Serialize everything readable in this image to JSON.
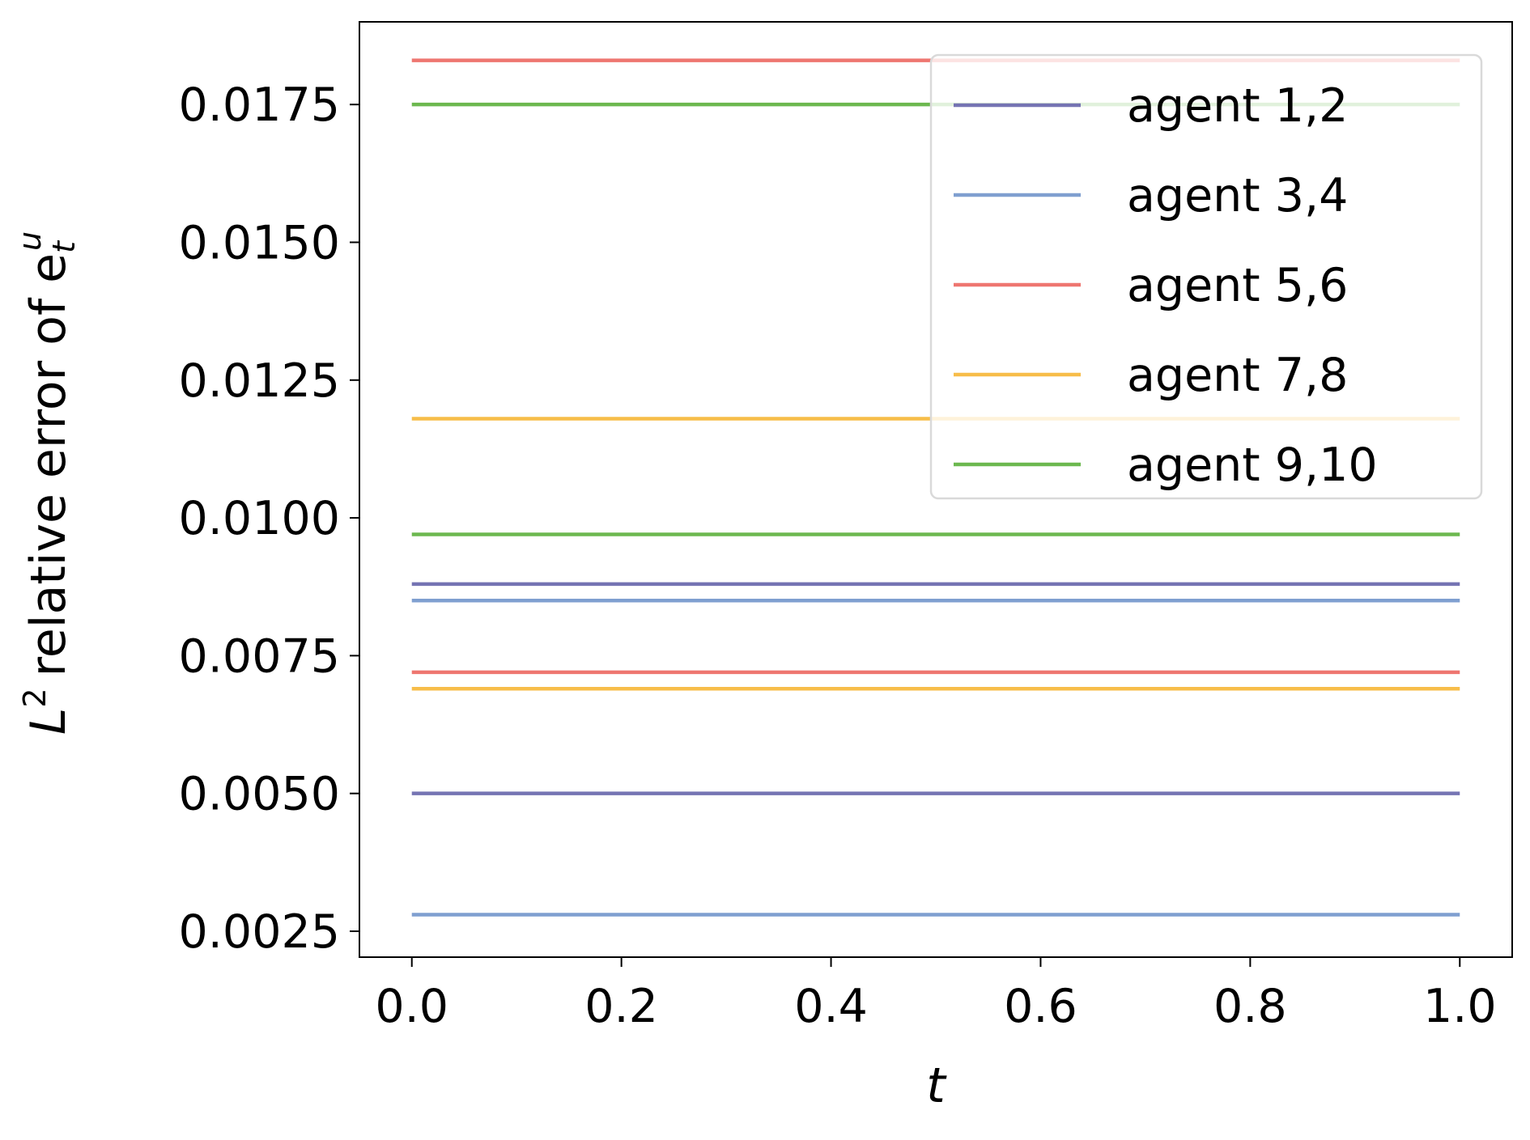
{
  "chart_data": {
    "type": "line",
    "title": "",
    "xlabel": "t",
    "ylabel": {
      "base": "L",
      "sup": "2",
      "text": "relative error of e",
      "sub": "t",
      "sup2": "u"
    },
    "xlim": [
      -0.05,
      1.05
    ],
    "ylim": [
      0.00203,
      0.019
    ],
    "xticks": [
      0.0,
      0.2,
      0.4,
      0.6,
      0.8,
      1.0
    ],
    "xtick_labels": [
      "0.0",
      "0.2",
      "0.4",
      "0.6",
      "0.8",
      "1.0"
    ],
    "yticks": [
      0.0025,
      0.005,
      0.0075,
      0.01,
      0.0125,
      0.015,
      0.0175
    ],
    "ytick_labels": [
      "0.0025",
      "0.0050",
      "0.0075",
      "0.0100",
      "0.0125",
      "0.0150",
      "0.0175"
    ],
    "grid": false,
    "legend_position": "top-right",
    "series": [
      {
        "name": "agent 1,2",
        "color": "#7574b3",
        "x": [
          0.0,
          1.0
        ],
        "lines": [
          0.0088,
          0.005
        ]
      },
      {
        "name": "agent 3,4",
        "color": "#7f9fd0",
        "x": [
          0.0,
          1.0
        ],
        "lines": [
          0.0085,
          0.0028
        ]
      },
      {
        "name": "agent 5,6",
        "color": "#ee7670",
        "x": [
          0.0,
          1.0
        ],
        "lines": [
          0.0183,
          0.0072
        ]
      },
      {
        "name": "agent 7,8",
        "color": "#f7bd49",
        "x": [
          0.0,
          1.0
        ],
        "lines": [
          0.0118,
          0.0069
        ]
      },
      {
        "name": "agent 9,10",
        "color": "#6cb84f",
        "x": [
          0.0,
          1.0
        ],
        "lines": [
          0.0175,
          0.0097
        ]
      }
    ]
  }
}
